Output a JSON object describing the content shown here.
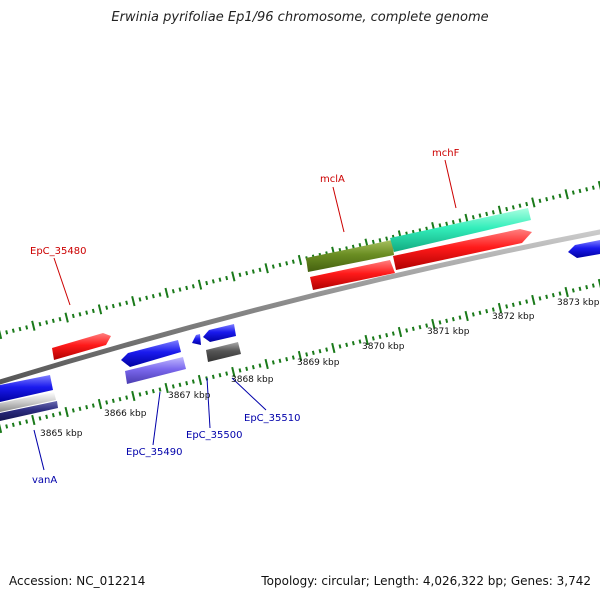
{
  "title": "Erwinia pyrifoliae Ep1/96 chromosome, complete genome",
  "footer": {
    "accession": "Accession: NC_012214",
    "topology": "Topology: circular; Length: 4,026,322 bp; Genes: 3,742"
  },
  "scale_labels": [
    "3865 kbp",
    "3866 kbp",
    "3867 kbp",
    "3868 kbp",
    "3869 kbp",
    "3870 kbp",
    "3871 kbp",
    "3872 kbp",
    "3873 kbp"
  ],
  "gene_labels": [
    {
      "name": "EpC_35480",
      "color": "#cc0000"
    },
    {
      "name": "mclA",
      "color": "#cc0000"
    },
    {
      "name": "mchF",
      "color": "#cc0000"
    },
    {
      "name": "vanA",
      "color": "#0000aa"
    },
    {
      "name": "EpC_35490",
      "color": "#0000aa"
    },
    {
      "name": "EpC_35500",
      "color": "#0000aa"
    },
    {
      "name": "EpC_35510",
      "color": "#0000aa"
    }
  ],
  "colors": {
    "forward_gene": "#ff1a1a",
    "reverse_gene": "#1a1aee",
    "cog_green": "#6b8e23",
    "cog_teal": "#33eebb",
    "cog_purple": "#7b68ee",
    "cog_gray": "#555555",
    "backbone": "#888888",
    "tick": "#1a7a1a"
  }
}
